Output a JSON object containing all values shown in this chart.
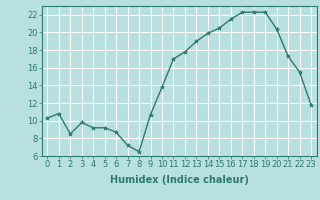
{
  "x": [
    0,
    1,
    2,
    3,
    4,
    5,
    6,
    7,
    8,
    9,
    10,
    11,
    12,
    13,
    14,
    15,
    16,
    17,
    18,
    19,
    20,
    21,
    22,
    23
  ],
  "y": [
    10.3,
    10.8,
    8.5,
    9.8,
    9.2,
    9.2,
    8.7,
    7.2,
    6.5,
    10.7,
    13.8,
    17.0,
    17.8,
    19.0,
    19.9,
    20.5,
    21.5,
    22.3,
    22.3,
    22.3,
    20.4,
    17.3,
    15.5,
    11.8
  ],
  "line_color": "#2d7a6e",
  "marker": "*",
  "marker_size": 3,
  "bg_color": "#b8e0e0",
  "grid_color": "#ffffff",
  "xlabel": "Humidex (Indice chaleur)",
  "ylim": [
    6,
    23
  ],
  "xlim": [
    -0.5,
    23.5
  ],
  "yticks": [
    6,
    8,
    10,
    12,
    14,
    16,
    18,
    20,
    22
  ],
  "xticks": [
    0,
    1,
    2,
    3,
    4,
    5,
    6,
    7,
    8,
    9,
    10,
    11,
    12,
    13,
    14,
    15,
    16,
    17,
    18,
    19,
    20,
    21,
    22,
    23
  ],
  "xlabel_fontsize": 7,
  "tick_fontsize": 6,
  "linewidth": 1.0
}
